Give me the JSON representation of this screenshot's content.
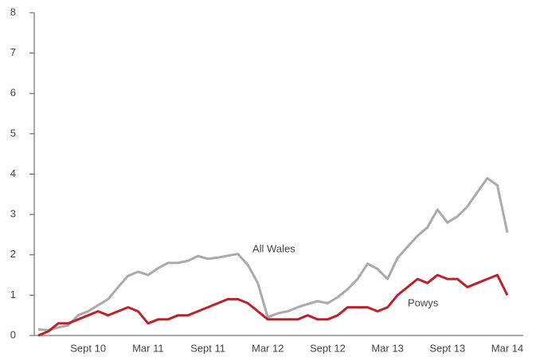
{
  "chart_data": {
    "type": "line",
    "categories": [
      null,
      null,
      null,
      null,
      null,
      "Sept 10",
      null,
      null,
      null,
      null,
      null,
      "Mar 11",
      null,
      null,
      null,
      null,
      null,
      "Sept 11",
      null,
      null,
      null,
      null,
      null,
      "Mar 12",
      null,
      null,
      null,
      null,
      null,
      "Sept 12",
      null,
      null,
      null,
      null,
      null,
      "Mar 13",
      null,
      null,
      null,
      null,
      null,
      "Sept 13",
      null,
      null,
      null,
      null,
      null,
      "Mar 14"
    ],
    "series": [
      {
        "name": "All Wales",
        "color": "#aaaaaa",
        "values": [
          0.15,
          0.13,
          0.2,
          0.25,
          0.5,
          0.6,
          0.75,
          0.9,
          1.2,
          1.48,
          1.58,
          1.5,
          1.67,
          1.8,
          1.8,
          1.85,
          1.97,
          1.9,
          1.93,
          1.98,
          2.02,
          1.75,
          1.3,
          0.45,
          0.55,
          0.6,
          0.7,
          0.78,
          0.85,
          0.8,
          0.95,
          1.15,
          1.4,
          1.78,
          1.65,
          1.4,
          1.92,
          2.2,
          2.47,
          2.68,
          3.12,
          2.8,
          2.95,
          3.2,
          3.55,
          3.9,
          3.72,
          2.55
        ]
      },
      {
        "name": "Powys",
        "color": "#c0202a",
        "values": [
          0,
          0.1,
          0.3,
          0.3,
          0.4,
          0.5,
          0.6,
          0.5,
          0.6,
          0.7,
          0.6,
          0.3,
          0.4,
          0.4,
          0.5,
          0.5,
          0.6,
          0.7,
          0.8,
          0.9,
          0.9,
          0.8,
          0.6,
          0.4,
          0.4,
          0.4,
          0.4,
          0.5,
          0.4,
          0.4,
          0.5,
          0.7,
          0.7,
          0.7,
          0.6,
          0.7,
          1.0,
          1.2,
          1.4,
          1.3,
          1.5,
          1.4,
          1.4,
          1.2,
          1.3,
          1.4,
          1.5,
          1.0
        ]
      }
    ],
    "ylim": [
      0,
      8
    ],
    "yticks": [
      0,
      1,
      2,
      3,
      4,
      5,
      6,
      7,
      8
    ],
    "grid": false
  }
}
